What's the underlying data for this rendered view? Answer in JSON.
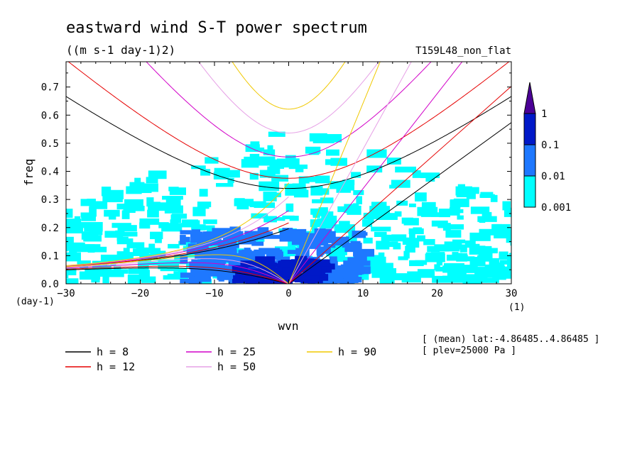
{
  "chart_data": {
    "type": "heatmap",
    "title": "eastward wind S-T power spectrum",
    "subtitle": "((m s-1 day-1)2)",
    "run_label": "T159L48_non_flat",
    "xlabel": "wvn",
    "ylabel": "freq",
    "x_unit": "(1)",
    "y_unit": "(day-1)",
    "xlim": [
      -30,
      30
    ],
    "ylim": [
      0,
      0.79
    ],
    "xticks": [
      -30,
      -20,
      -10,
      0,
      10,
      20,
      30
    ],
    "yticks": [
      0.0,
      0.1,
      0.2,
      0.3,
      0.4,
      0.5,
      0.6,
      0.7
    ],
    "colorbar": {
      "levels": [
        "0.001",
        "0.01",
        "0.1",
        "1"
      ],
      "colors": [
        "#00ffff",
        "#1e78ff",
        "#0019c8",
        "#4b0096"
      ],
      "extend": "max"
    },
    "power_regions": [
      {
        "level": 1,
        "x_range": [
          -33,
          33
        ],
        "y_range": [
          0,
          0.55
        ],
        "note": "scattered cyan patches"
      },
      {
        "level": 2,
        "x_range": [
          -15,
          9
        ],
        "y_range": [
          0,
          0.18
        ],
        "note": "bright blue region"
      },
      {
        "level": 3,
        "x_range": [
          -8,
          4
        ],
        "y_range": [
          0,
          0.07
        ],
        "note": "dark blue core"
      }
    ],
    "dispersion_curves": [
      {
        "h": 8,
        "color": "#000000",
        "kelvin_end": [
          30,
          0.565
        ],
        "mrg_end": [
          -30,
          0.637
        ],
        "ig_min": 0.33,
        "er_max": 0.058
      },
      {
        "h": 12,
        "color": "#e60000",
        "kelvin_end": [
          29.7,
          0.68
        ],
        "mrg_end": [
          -30,
          0.77
        ],
        "ig_min": 0.37,
        "er_max": 0.062
      },
      {
        "h": 25,
        "color": "#d200c8",
        "kelvin_end": [
          23.5,
          0.79
        ],
        "ig_min": 0.44,
        "er_max": 0.072
      },
      {
        "h": 50,
        "color": "#e6a0e6",
        "kelvin_end": [
          16.5,
          0.79
        ],
        "ig_min": 0.52,
        "er_max": 0.088
      },
      {
        "h": 90,
        "color": "#f0c800",
        "kelvin_end": [
          12.3,
          0.79
        ],
        "ig_min": 0.615,
        "er_max": 0.105
      }
    ],
    "legend": [
      {
        "label": "h =  8",
        "color": "#000000"
      },
      {
        "label": "h = 12",
        "color": "#e60000"
      },
      {
        "label": "h = 25",
        "color": "#d200c8"
      },
      {
        "label": "h = 50",
        "color": "#e6a0e6"
      },
      {
        "label": "h = 90",
        "color": "#f0c800"
      }
    ],
    "notes": [
      "[ (mean) lat:-4.86485..4.86485 ]",
      "[ plev=25000 Pa ]"
    ]
  }
}
